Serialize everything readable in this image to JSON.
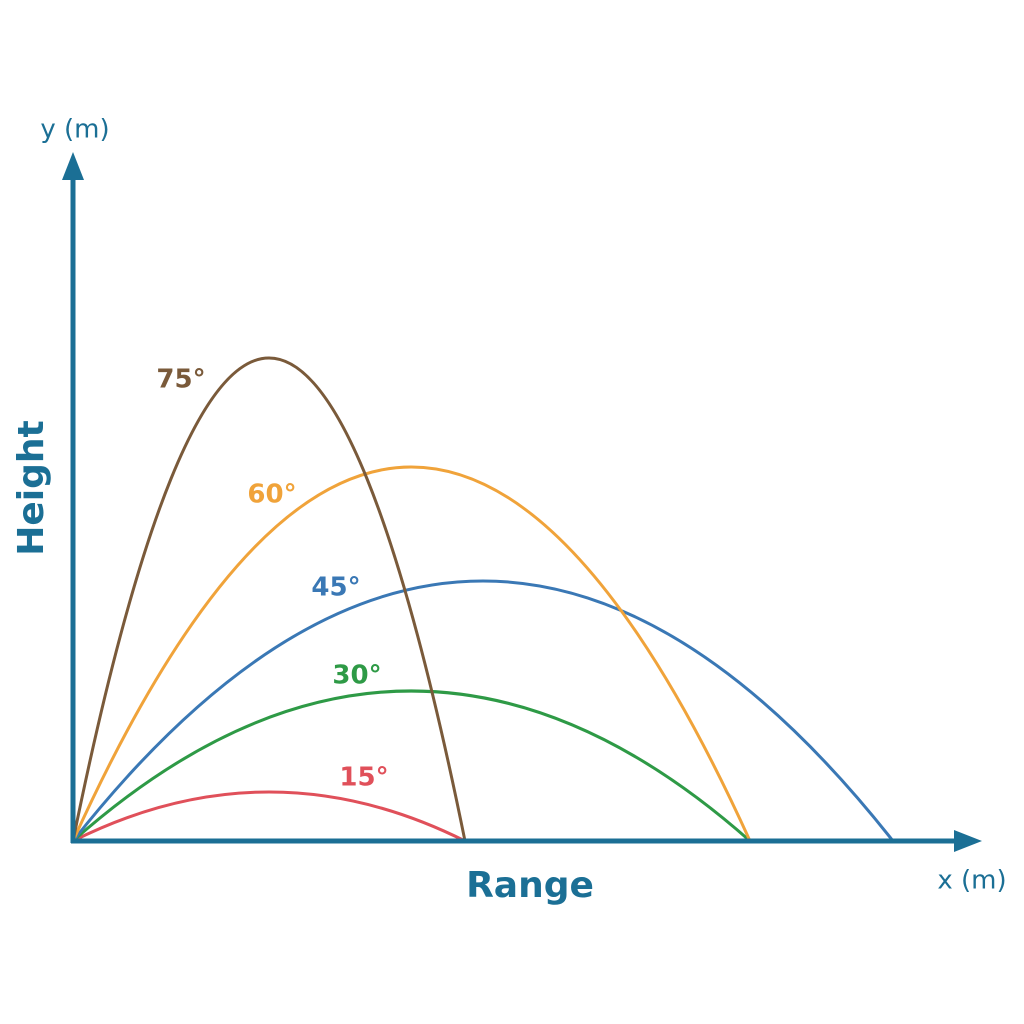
{
  "axes": {
    "y_unit": "y (m)",
    "x_unit": "x (m)",
    "y_title": "Height",
    "x_title": "Range"
  },
  "trajectories": [
    {
      "label": "75°"
    },
    {
      "label": "60°"
    },
    {
      "label": "45°"
    },
    {
      "label": "30°"
    },
    {
      "label": "15°"
    }
  ]
}
